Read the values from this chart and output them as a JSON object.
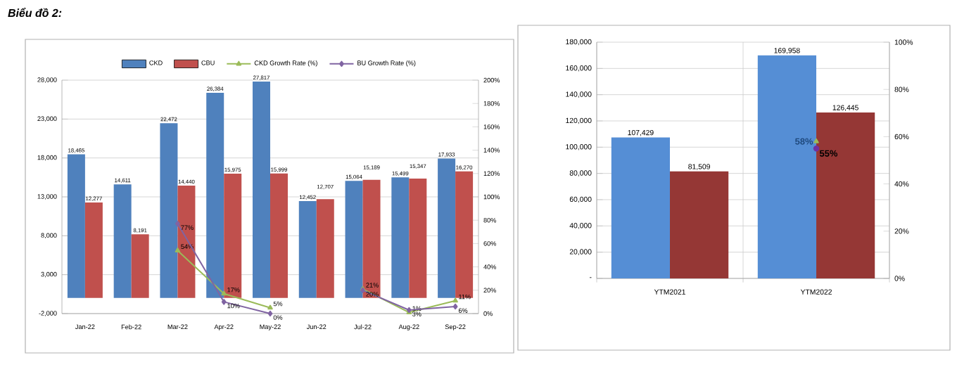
{
  "chart_data": [
    {
      "type": "bar",
      "annotations": [
        "Biểu đồ 2:"
      ],
      "categories": [
        "Jan-22",
        "Feb-22",
        "Mar-22",
        "Apr-22",
        "May-22",
        "Jun-22",
        "Jul-22",
        "Aug-22",
        "Sep-22"
      ],
      "series": [
        {
          "name": "CKD",
          "color": "#4f81bd",
          "values": [
            18465,
            14611,
            22472,
            26384,
            27817,
            12452,
            15064,
            15499,
            17933
          ],
          "value_labels": [
            "18,465",
            "14,611",
            "22,472",
            "26,384",
            "27,817",
            "12,452",
            "15,064",
            "15,499",
            "17,933"
          ]
        },
        {
          "name": "CBU",
          "color": "#c0504d",
          "values": [
            12277,
            8191,
            14440,
            15975,
            15999,
            12707,
            15189,
            15347,
            16270
          ],
          "value_labels": [
            "12,277",
            "8,191",
            "14,440",
            "15,975",
            "15,999",
            "12,707",
            "15,189",
            "15,347",
            "16,270"
          ]
        },
        {
          "name": "CKD Growth Rate (%)",
          "type": "line",
          "axis": "y2",
          "color": "#9bbb59",
          "marker": "triangle",
          "values": [
            null,
            null,
            54,
            17,
            5,
            null,
            21,
            1,
            11
          ],
          "value_labels": [
            null,
            null,
            "54%",
            "17%",
            "5%",
            null,
            "21%",
            "1%",
            "11%"
          ]
        },
        {
          "name": "BU Growth Rate (%)",
          "type": "line",
          "axis": "y2",
          "color": "#8064a2",
          "marker": "diamond",
          "values": [
            null,
            null,
            77,
            10,
            0,
            null,
            20,
            3,
            6
          ],
          "value_labels": [
            null,
            null,
            "77%",
            "10%",
            "0%",
            null,
            "20%",
            "3%",
            "6%"
          ]
        }
      ],
      "ylim": [
        -2000,
        28000
      ],
      "yticks": [
        {
          "value": -2000,
          "label": "-2,000"
        },
        {
          "value": 3000,
          "label": "3,000"
        },
        {
          "value": 8000,
          "label": "8,000"
        },
        {
          "value": 13000,
          "label": "13,000"
        },
        {
          "value": 18000,
          "label": "18,000"
        },
        {
          "value": 23000,
          "label": "23,000"
        },
        {
          "value": 28000,
          "label": "28,000"
        }
      ],
      "y2lim": [
        0,
        200
      ],
      "y2ticks": [
        {
          "value": 0,
          "label": "0%"
        },
        {
          "value": 20,
          "label": "20%"
        },
        {
          "value": 40,
          "label": "40%"
        },
        {
          "value": 60,
          "label": "60%"
        },
        {
          "value": 80,
          "label": "80%"
        },
        {
          "value": 100,
          "label": "100%"
        },
        {
          "value": 120,
          "label": "120%"
        },
        {
          "value": 140,
          "label": "140%"
        },
        {
          "value": 160,
          "label": "160%"
        },
        {
          "value": 180,
          "label": "180%"
        },
        {
          "value": 200,
          "label": "200%"
        }
      ],
      "grid": "y",
      "legend": "top"
    },
    {
      "type": "bar",
      "categories": [
        "YTM2021",
        "YTM2022"
      ],
      "series": [
        {
          "color": "#558ed5",
          "values": [
            107429,
            169958
          ],
          "value_labels": [
            "107,429",
            "169,958"
          ]
        },
        {
          "color": "#953735",
          "values": [
            81509,
            126445
          ],
          "value_labels": [
            "81,509",
            "126,445"
          ]
        },
        {
          "type": "line",
          "axis": "y2",
          "color": "#9bbb59",
          "marker": "triangle",
          "values": [
            null,
            58
          ],
          "value_labels": [
            null,
            "58%"
          ]
        },
        {
          "type": "line",
          "axis": "y2",
          "color": "#7030a0",
          "marker": "circle",
          "values": [
            null,
            55
          ],
          "value_labels": [
            null,
            "55%"
          ]
        }
      ],
      "ylim": [
        0,
        180000
      ],
      "yticks": [
        {
          "value": 0,
          "label": "-"
        },
        {
          "value": 20000,
          "label": "20,000"
        },
        {
          "value": 40000,
          "label": "40,000"
        },
        {
          "value": 60000,
          "label": "60,000"
        },
        {
          "value": 80000,
          "label": "80,000"
        },
        {
          "value": 100000,
          "label": "100,000"
        },
        {
          "value": 120000,
          "label": "120,000"
        },
        {
          "value": 140000,
          "label": "140,000"
        },
        {
          "value": 160000,
          "label": "160,000"
        },
        {
          "value": 180000,
          "label": "180,000"
        }
      ],
      "y2lim": [
        0,
        100
      ],
      "y2ticks": [
        {
          "value": 0,
          "label": "0%"
        },
        {
          "value": 20,
          "label": "20%"
        },
        {
          "value": 40,
          "label": "40%"
        },
        {
          "value": 60,
          "label": "60%"
        },
        {
          "value": 80,
          "label": "80%"
        },
        {
          "value": 100,
          "label": "100%"
        }
      ],
      "grid": true
    }
  ]
}
